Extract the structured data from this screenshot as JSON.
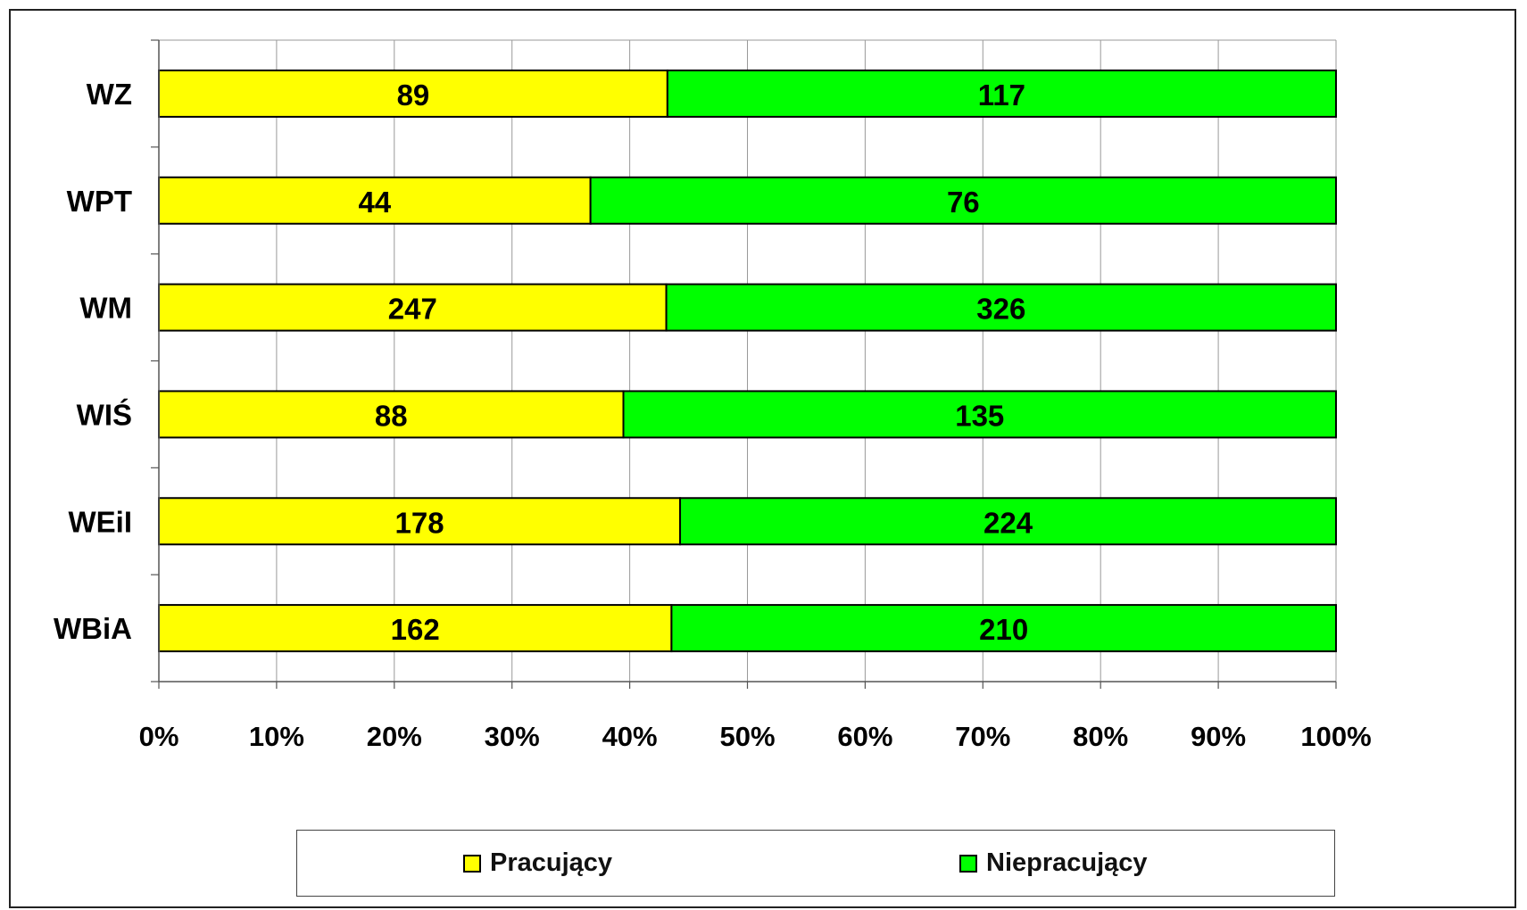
{
  "chart_data": {
    "type": "bar",
    "orientation": "horizontal",
    "stacked": "percent",
    "categories": [
      "WZ",
      "WPT",
      "WM",
      "WIŚ",
      "WEiI",
      "WBiA"
    ],
    "series": [
      {
        "name": "Pracujący",
        "values": [
          89,
          44,
          247,
          88,
          178,
          162
        ],
        "color": "#FFFF00"
      },
      {
        "name": "Niepracujący",
        "values": [
          117,
          76,
          326,
          135,
          224,
          210
        ],
        "color": "#00FF00"
      }
    ],
    "x_ticks": [
      "0%",
      "10%",
      "20%",
      "30%",
      "40%",
      "50%",
      "60%",
      "70%",
      "80%",
      "90%",
      "100%"
    ],
    "xlim": [
      0,
      100
    ],
    "grid": true,
    "legend_position": "bottom"
  }
}
